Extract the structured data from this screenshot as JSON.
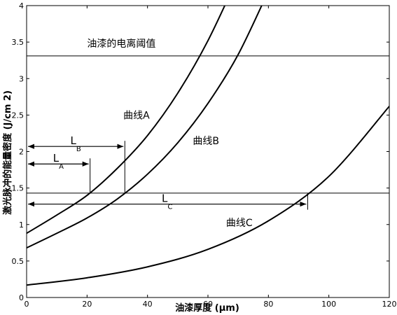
{
  "chart_data": {
    "type": "line",
    "xlabel": "油漆厚度 (μm)",
    "ylabel": "激光脉冲的能量密度 (J/cm 2)",
    "xlim": [
      0,
      120
    ],
    "ylim": [
      0,
      4
    ],
    "x_ticks": [
      "0",
      "20",
      "40",
      "60",
      "80",
      "100",
      "120"
    ],
    "y_ticks": [
      "0",
      "0.5",
      "1",
      "1.5",
      "2",
      "2.5",
      "3",
      "3.5",
      "4"
    ],
    "grid": false,
    "series": [
      {
        "name": "曲线A",
        "x": [
          0,
          10,
          20,
          30,
          40,
          50,
          60,
          70
        ],
        "y": [
          0.88,
          1.13,
          1.4,
          1.77,
          2.22,
          2.8,
          3.52,
          4.4
        ]
      },
      {
        "name": "曲线B",
        "x": [
          0,
          10,
          20,
          30,
          40,
          50,
          60,
          70,
          80
        ],
        "y": [
          0.68,
          0.88,
          1.09,
          1.35,
          1.69,
          2.12,
          2.66,
          3.33,
          4.2
        ]
      },
      {
        "name": "曲线C",
        "x": [
          0,
          20,
          40,
          60,
          80,
          100,
          120
        ],
        "y": [
          0.17,
          0.27,
          0.42,
          0.66,
          1.05,
          1.66,
          2.62
        ]
      }
    ],
    "threshold_lines": [
      {
        "label": "油漆的电离阈值",
        "y": 3.31
      },
      {
        "label": "",
        "y": 1.43
      }
    ],
    "dimensions": [
      {
        "main": "L",
        "sub": "A",
        "x_start": 0,
        "x_end": 21,
        "y": 1.83,
        "drop_to": 1.43
      },
      {
        "main": "L",
        "sub": "B",
        "x_start": 0,
        "x_end": 32.5,
        "y": 2.07,
        "drop_to": 1.43
      },
      {
        "main": "L",
        "sub": "C",
        "x_start": 0,
        "x_end": 93,
        "y": 1.28,
        "rise_to": 1.43
      }
    ],
    "curve_labels": [
      {
        "text": "曲线A",
        "x": 32,
        "y": 2.45
      },
      {
        "text": "曲线B",
        "x": 55,
        "y": 2.1
      },
      {
        "text": "曲线C",
        "x": 66,
        "y": 0.98
      }
    ]
  }
}
